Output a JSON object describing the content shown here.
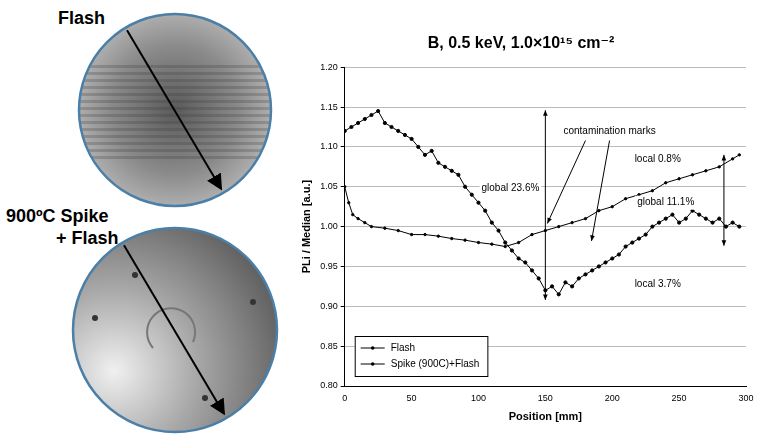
{
  "wafer_maps": [
    {
      "lines": [
        "Flash"
      ]
    },
    {
      "lines": [
        "900ºC Spike",
        "+ Flash"
      ]
    }
  ],
  "chart_data": {
    "type": "line",
    "title": "B, 0.5 keV, 1.0×10¹⁵ cm⁻²",
    "x_label": "Position [mm]",
    "y_label": "PLi / Median [a.u.]",
    "xlim": [
      0,
      300
    ],
    "xticks": [
      0,
      50,
      100,
      150,
      200,
      250,
      300
    ],
    "ylim": [
      0.8,
      1.2
    ],
    "yticks": [
      {
        "value": 0.8,
        "label": "0.80"
      },
      {
        "value": 0.85,
        "label": "0.85"
      },
      {
        "value": 0.9,
        "label": "0.90"
      },
      {
        "value": 0.95,
        "label": "0.95"
      },
      {
        "value": 1.0,
        "label": "1.00"
      },
      {
        "value": 1.05,
        "label": "1.05"
      },
      {
        "value": 1.1,
        "label": "1.10"
      },
      {
        "value": 1.15,
        "label": "1.15"
      },
      {
        "value": 1.2,
        "label": "1.20"
      }
    ],
    "grid": "y",
    "legend": "lower left",
    "annotations": [
      "contamination marks",
      "global 23.6%",
      "local 0.8%",
      "global 11.1%",
      "local 3.7%"
    ],
    "series": [
      {
        "name": "Flash",
        "color": "#000000",
        "marker": "circle",
        "line_style": "solid",
        "x": [
          0,
          5,
          10,
          15,
          20,
          25,
          30,
          35,
          40,
          45,
          50,
          55,
          60,
          65,
          70,
          75,
          80,
          85,
          90,
          95,
          100,
          105,
          110,
          115,
          120,
          125,
          130,
          135,
          140,
          145,
          150,
          155,
          160,
          165,
          170,
          175,
          180,
          185,
          190,
          195,
          200,
          205,
          210,
          215,
          220,
          225,
          230,
          235,
          240,
          245,
          250,
          255,
          260,
          265,
          270,
          275,
          280,
          285,
          290,
          295
        ],
        "values": [
          1.12,
          1.125,
          1.13,
          1.135,
          1.14,
          1.145,
          1.13,
          1.125,
          1.12,
          1.115,
          1.11,
          1.1,
          1.09,
          1.095,
          1.08,
          1.075,
          1.07,
          1.065,
          1.05,
          1.04,
          1.03,
          1.02,
          1.005,
          0.995,
          0.98,
          0.97,
          0.96,
          0.955,
          0.945,
          0.935,
          0.92,
          0.925,
          0.915,
          0.93,
          0.925,
          0.935,
          0.94,
          0.945,
          0.95,
          0.955,
          0.96,
          0.965,
          0.975,
          0.98,
          0.985,
          0.99,
          1.0,
          1.005,
          1.01,
          1.015,
          1.005,
          1.01,
          1.02,
          1.015,
          1.01,
          1.005,
          1.01,
          1.0,
          1.005,
          1.0
        ]
      },
      {
        "name": "Spike (900C)+Flash",
        "color": "#000000",
        "marker": "circle",
        "line_style": "solid",
        "x": [
          0,
          3,
          6,
          10,
          15,
          20,
          30,
          40,
          50,
          60,
          70,
          80,
          90,
          100,
          110,
          120,
          130,
          140,
          150,
          160,
          170,
          180,
          190,
          200,
          210,
          220,
          230,
          240,
          250,
          260,
          270,
          280,
          290,
          295
        ],
        "values": [
          1.05,
          1.03,
          1.015,
          1.01,
          1.005,
          1.0,
          0.998,
          0.995,
          0.99,
          0.99,
          0.988,
          0.985,
          0.983,
          0.98,
          0.978,
          0.975,
          0.98,
          0.99,
          0.995,
          1.0,
          1.005,
          1.01,
          1.02,
          1.025,
          1.035,
          1.04,
          1.045,
          1.055,
          1.06,
          1.065,
          1.07,
          1.075,
          1.085,
          1.09
        ]
      }
    ]
  }
}
